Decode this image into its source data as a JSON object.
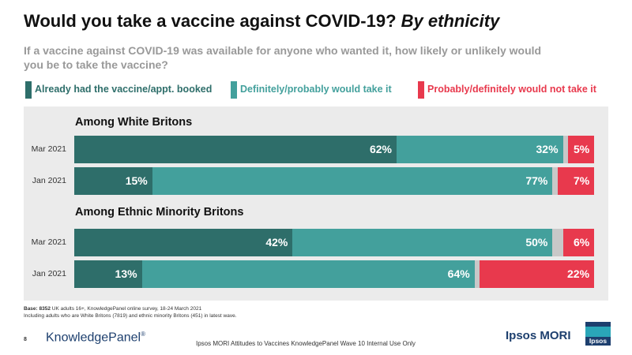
{
  "title": {
    "main": "Would you take a vaccine against COVID-19?",
    "emph": "By ethnicity"
  },
  "subtitle": "If a vaccine against COVID-19 was available for anyone who wanted it, how likely or unlikely would you be to take the vaccine?",
  "legend": [
    {
      "label": "Already had the vaccine/appt. booked",
      "color": "#2e6e6a"
    },
    {
      "label": "Definitely/probably would take it",
      "color": "#43a09c"
    },
    {
      "label": "Probably/definitely would not take it",
      "color": "#e8394d"
    }
  ],
  "chart_data": {
    "type": "bar",
    "orientation": "horizontal",
    "stacked": true,
    "unit": "%",
    "groups": [
      {
        "title": "Among White Britons",
        "rows": [
          {
            "label": "Mar 2021",
            "values": [
              62,
              32,
              1,
              5
            ],
            "labels": [
              "62%",
              "32%",
              "",
              "5%"
            ]
          },
          {
            "label": "Jan 2021",
            "values": [
              15,
              77,
              1,
              7
            ],
            "labels": [
              "15%",
              "77%",
              "",
              "7%"
            ]
          }
        ]
      },
      {
        "title": "Among Ethnic Minority Britons",
        "rows": [
          {
            "label": "Mar 2021",
            "values": [
              42,
              50,
              2,
              6
            ],
            "labels": [
              "42%",
              "50%",
              "",
              "6%"
            ]
          },
          {
            "label": "Jan 2021",
            "values": [
              13,
              64,
              1,
              22
            ],
            "labels": [
              "13%",
              "64%",
              "",
              "22%"
            ]
          }
        ]
      }
    ],
    "segment_colors": [
      "#2e6e6a",
      "#43a09c",
      "#c8c8c8",
      "#e8394d"
    ],
    "xlim": [
      0,
      100
    ]
  },
  "footnote": {
    "bold": "Base: 8352",
    "line1": " UK adults 16+, KnowledgePanel online survey, 18-24 March 2021",
    "line2": "Including adults who are White Britons (7819) and ethnic minority Britons (451) in latest wave."
  },
  "footer": {
    "page_number": "8",
    "brand": "KnowledgePanel",
    "reg": "®",
    "center": "Ipsos MORI Attitudes to Vaccines KnowledgePanel Wave 10 Internal Use Only",
    "company": "Ipsos MORI",
    "logo_text": "Ipsos"
  }
}
